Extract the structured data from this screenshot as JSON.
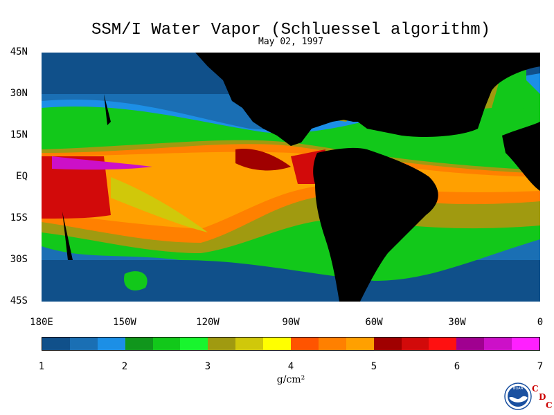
{
  "title": "SSM/I Water Vapor (Schluessel algorithm)",
  "date": "May 02, 1997",
  "lat_labels": [
    "45N",
    "30N",
    "15N",
    "EQ",
    "15S",
    "30S",
    "45S"
  ],
  "lon_labels": [
    "180E",
    "150W",
    "120W",
    "90W",
    "60W",
    "30W",
    "0"
  ],
  "colorbar": {
    "colors": [
      "#10508a",
      "#1a6fb4",
      "#1c8fe6",
      "#10961c",
      "#12c81a",
      "#18f52e",
      "#a09a10",
      "#d0c80a",
      "#ffff00",
      "#ff5400",
      "#ff8000",
      "#ffa000",
      "#a00000",
      "#d20a0a",
      "#ff1010",
      "#a00090",
      "#cc10c8",
      "#ff20ff"
    ],
    "labels": [
      "1",
      "2",
      "3",
      "4",
      "5",
      "6",
      "7"
    ],
    "unit": "g/cm²"
  },
  "logo": {
    "text": "NOAA",
    "cdc": [
      "C",
      "D",
      "C"
    ]
  }
}
